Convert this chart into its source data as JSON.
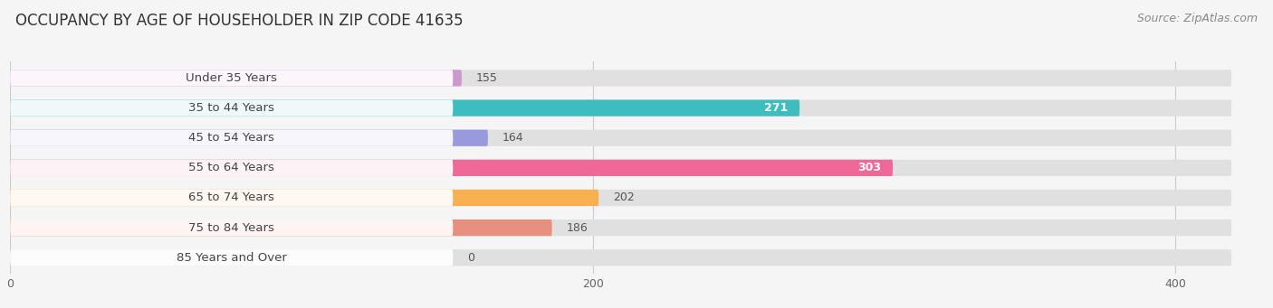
{
  "title": "OCCUPANCY BY AGE OF HOUSEHOLDER IN ZIP CODE 41635",
  "source": "Source: ZipAtlas.com",
  "categories": [
    "Under 35 Years",
    "35 to 44 Years",
    "45 to 54 Years",
    "55 to 64 Years",
    "65 to 74 Years",
    "75 to 84 Years",
    "85 Years and Over"
  ],
  "values": [
    155,
    271,
    164,
    303,
    202,
    186,
    0
  ],
  "bar_colors": [
    "#cc99cc",
    "#3dbdbd",
    "#9999dd",
    "#f06898",
    "#f8b050",
    "#e89080",
    "#99bbdd"
  ],
  "background_color": "#f5f5f5",
  "bar_bg_color": "#e0e0e0",
  "xlim_max": 430,
  "title_fontsize": 12,
  "label_fontsize": 9.5,
  "value_fontsize": 9,
  "source_fontsize": 9
}
